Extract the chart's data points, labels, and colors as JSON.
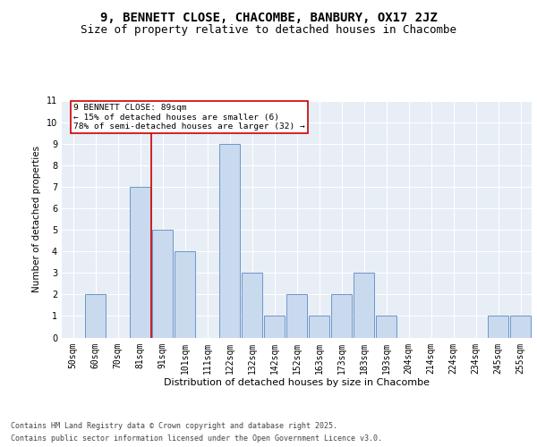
{
  "title": "9, BENNETT CLOSE, CHACOMBE, BANBURY, OX17 2JZ",
  "subtitle": "Size of property relative to detached houses in Chacombe",
  "xlabel": "Distribution of detached houses by size in Chacombe",
  "ylabel": "Number of detached properties",
  "footer_line1": "Contains HM Land Registry data © Crown copyright and database right 2025.",
  "footer_line2": "Contains public sector information licensed under the Open Government Licence v3.0.",
  "categories": [
    "50sqm",
    "60sqm",
    "70sqm",
    "81sqm",
    "91sqm",
    "101sqm",
    "111sqm",
    "122sqm",
    "132sqm",
    "142sqm",
    "152sqm",
    "163sqm",
    "173sqm",
    "183sqm",
    "193sqm",
    "204sqm",
    "214sqm",
    "224sqm",
    "234sqm",
    "245sqm",
    "255sqm"
  ],
  "values": [
    0,
    2,
    0,
    7,
    5,
    4,
    0,
    9,
    3,
    1,
    2,
    1,
    2,
    3,
    1,
    0,
    0,
    0,
    0,
    1,
    1
  ],
  "bar_color": "#c9d9ee",
  "bar_edge_color": "#5b8bc4",
  "vline_x": 3.5,
  "vline_color": "#cc0000",
  "annotation_text": "9 BENNETT CLOSE: 89sqm\n← 15% of detached houses are smaller (6)\n78% of semi-detached houses are larger (32) →",
  "annotation_box_color": "#cc0000",
  "ylim": [
    0,
    11
  ],
  "yticks": [
    0,
    1,
    2,
    3,
    4,
    5,
    6,
    7,
    8,
    9,
    10,
    11
  ],
  "background_color": "#e8eef5",
  "fig_background": "#ffffff",
  "title_fontsize": 10,
  "subtitle_fontsize": 9,
  "tick_fontsize": 7,
  "ylabel_fontsize": 7.5,
  "xlabel_fontsize": 8
}
